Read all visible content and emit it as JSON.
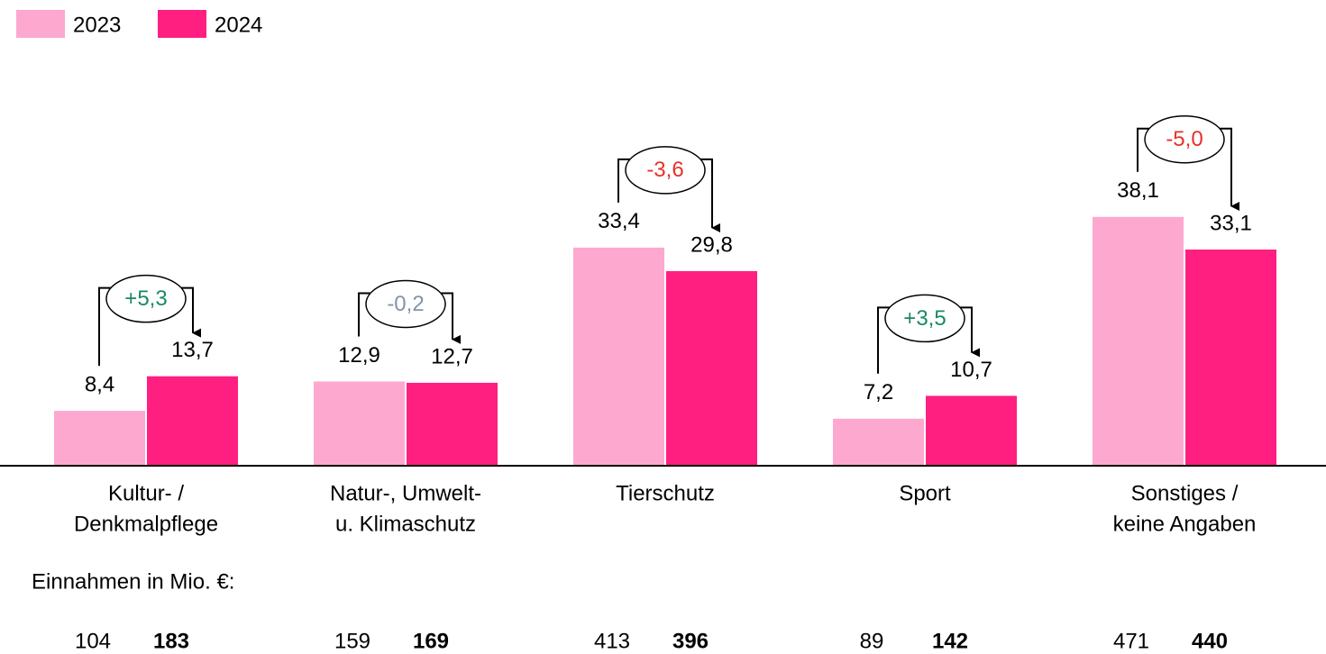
{
  "chart_data": {
    "type": "bar",
    "categories": [
      [
        "Kultur- /",
        "Denkmalpflege"
      ],
      [
        "Natur-, Umwelt-",
        "u. Klimaschutz"
      ],
      [
        "Tierschutz"
      ],
      [
        "Sport"
      ],
      [
        "Sonstiges /",
        "keine Angaben"
      ]
    ],
    "series": [
      {
        "name": "2023",
        "color": "#fda8cf",
        "values": [
          8.4,
          12.9,
          33.4,
          7.2,
          38.1
        ],
        "value_labels": [
          "8,4",
          "12,9",
          "33,4",
          "7,2",
          "38,1"
        ],
        "income": [
          104,
          159,
          413,
          89,
          471
        ]
      },
      {
        "name": "2024",
        "color": "#ff1f80",
        "values": [
          13.7,
          12.7,
          29.8,
          10.7,
          33.1
        ],
        "value_labels": [
          "13,7",
          "12,7",
          "29,8",
          "10,7",
          "33,1"
        ],
        "income": [
          183,
          169,
          396,
          142,
          440
        ]
      }
    ],
    "changes": [
      5.3,
      -0.2,
      -3.6,
      3.5,
      -5.0
    ],
    "change_labels": [
      "+5,3",
      "-0,2",
      "-3,6",
      "+3,5",
      "-5,0"
    ],
    "change_colors": [
      "#1a8a60",
      "#8493ab",
      "#e8302a",
      "#1a8a60",
      "#e8302a"
    ],
    "income_label": "Einnahmen in Mio. €:",
    "ylim": [
      0,
      40
    ]
  }
}
